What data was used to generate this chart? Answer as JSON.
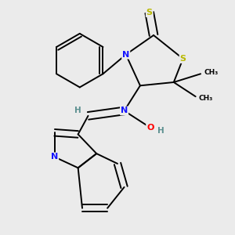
{
  "bg_color": "#ebebeb",
  "atom_colors": {
    "C": "#000000",
    "N": "#1414ff",
    "S": "#b8b800",
    "O": "#ff0000",
    "H": "#5c9090"
  },
  "bond_color": "#000000",
  "bond_lw": 1.4
}
